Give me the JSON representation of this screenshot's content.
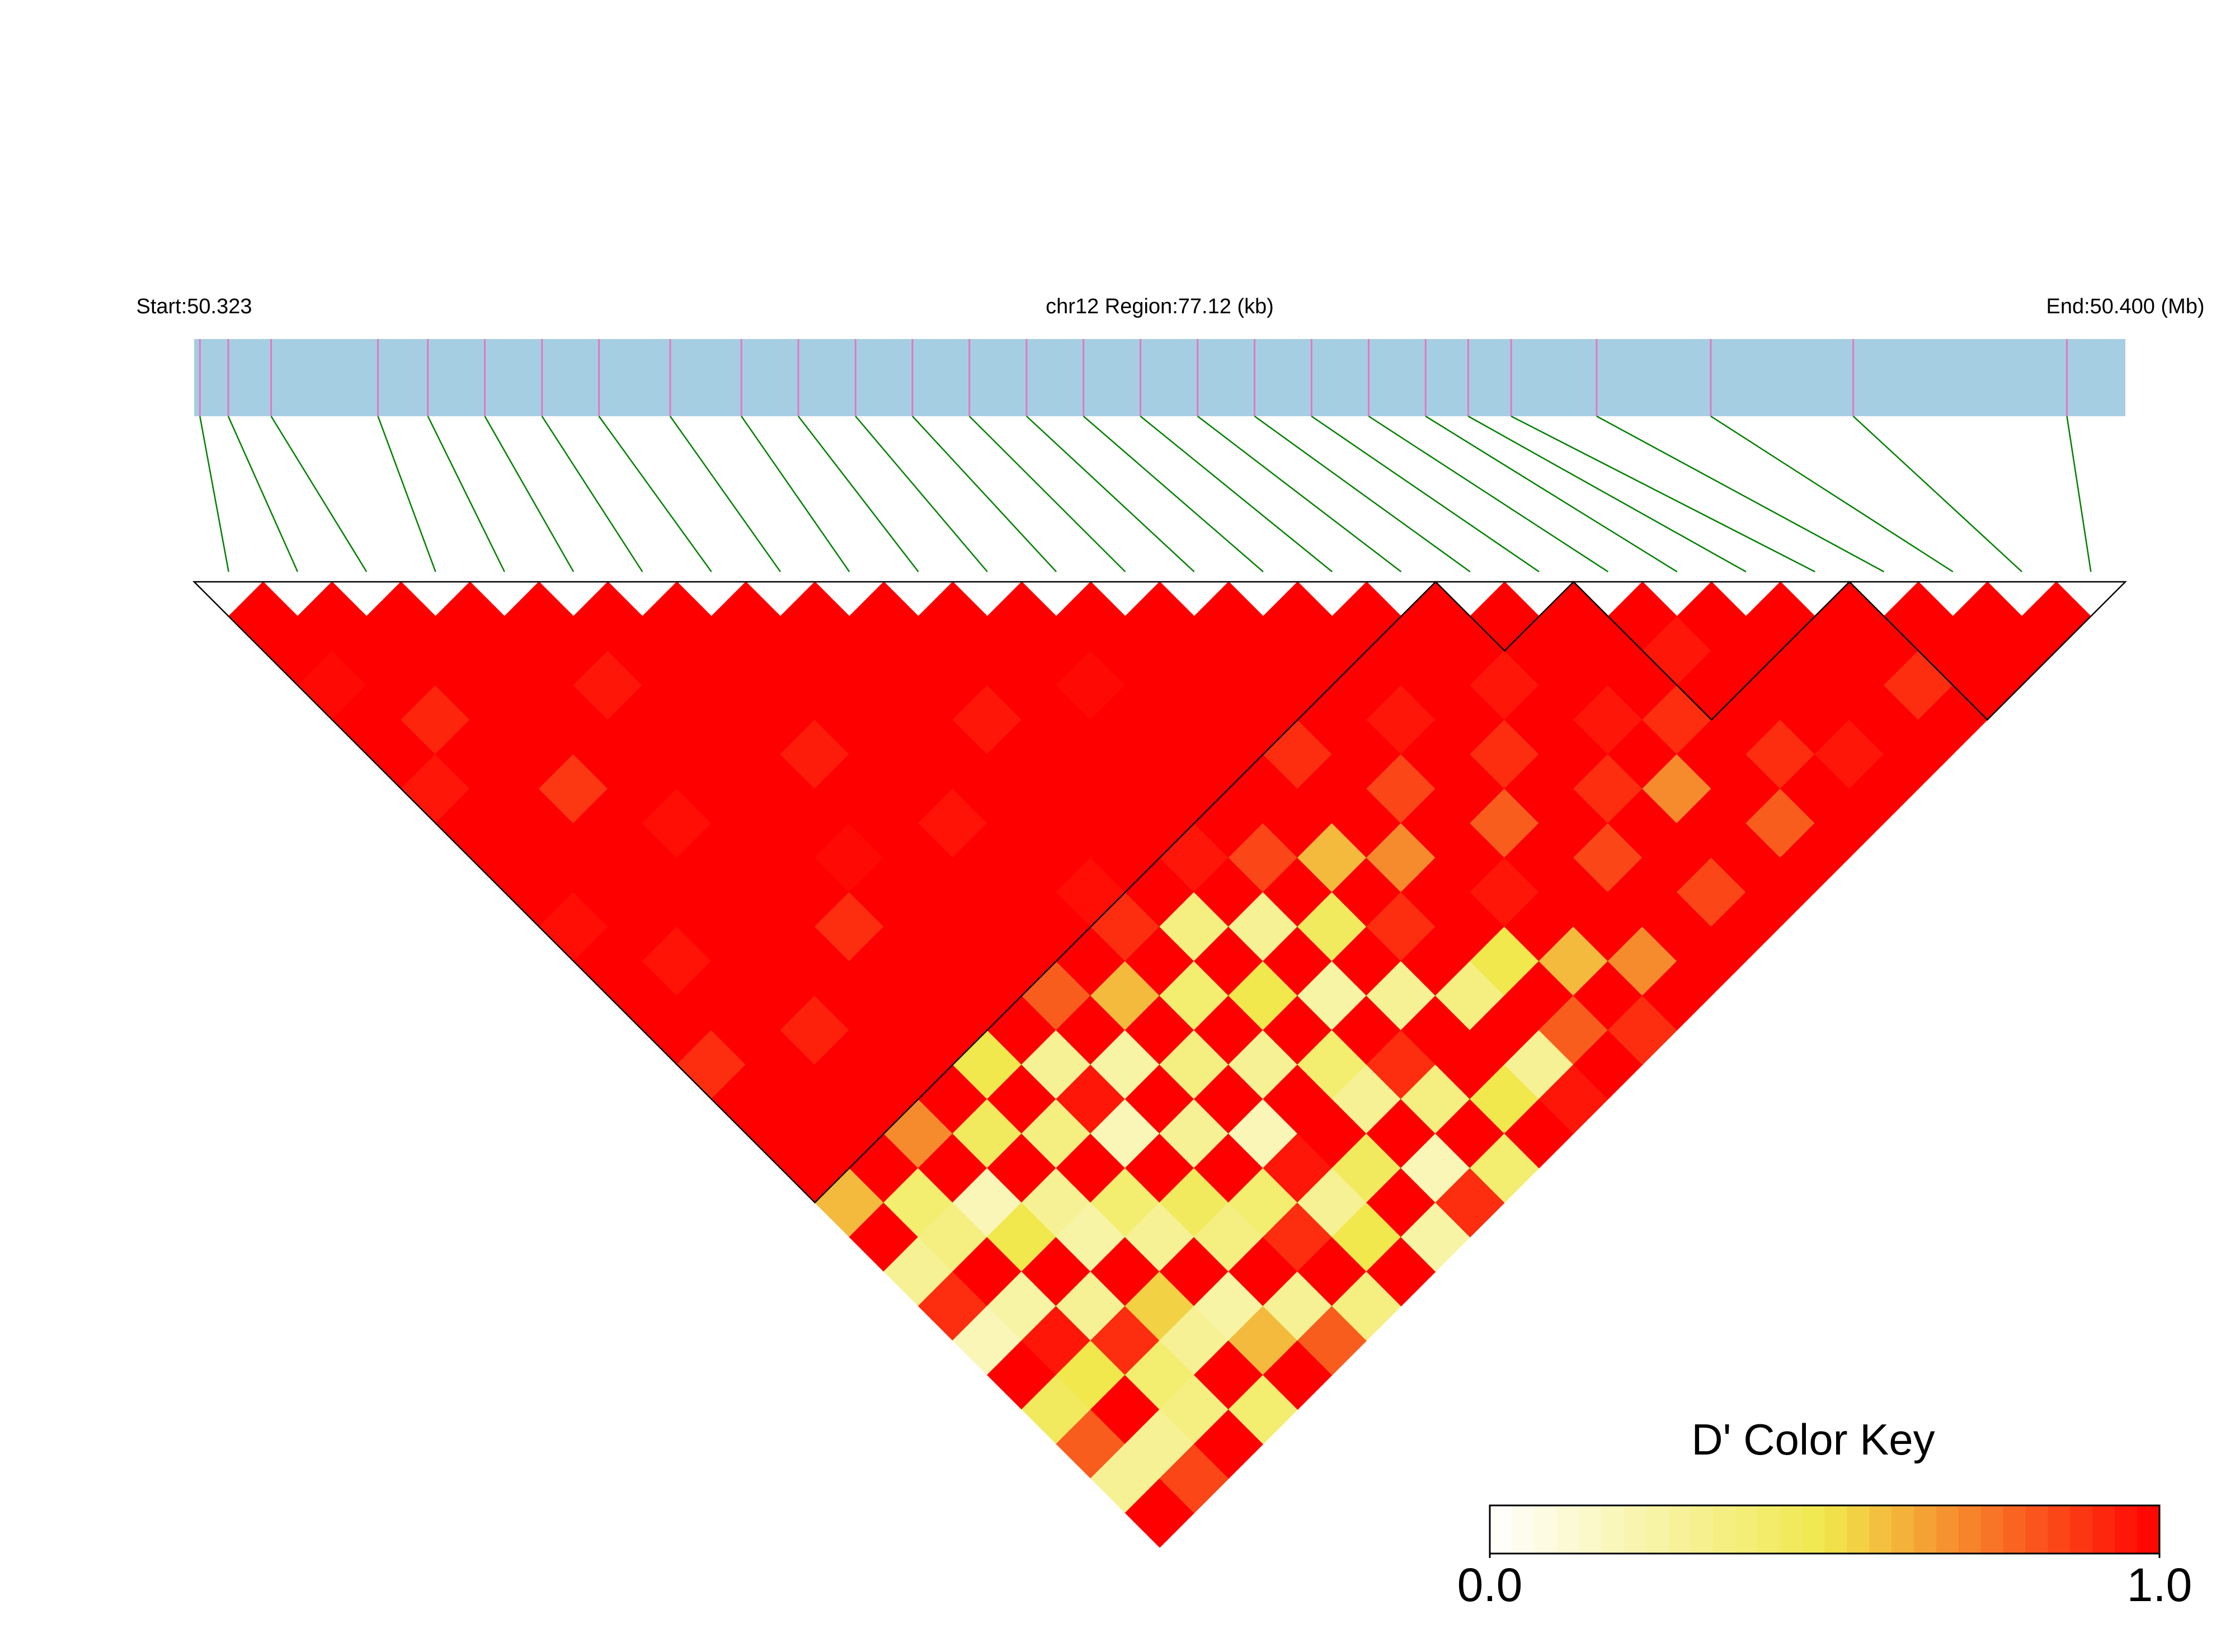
{
  "chart_data": {
    "type": "ld-heatmap",
    "start_label": "Start:50.323",
    "title": "chr12 Region:77.12 (kb)",
    "end_label": "End:50.400 (Mb)",
    "xlim": [
      50.323,
      50.4
    ],
    "positions": [
      50.32323,
      50.32436,
      50.32607,
      50.33033,
      50.33232,
      50.33459,
      50.33687,
      50.33914,
      50.34198,
      50.34482,
      50.34709,
      50.34937,
      50.35164,
      50.35391,
      50.35619,
      50.35846,
      50.36073,
      50.36301,
      50.36528,
      50.36755,
      50.36983,
      50.3721,
      50.3738,
      50.37551,
      50.37892,
      50.38347,
      50.38915,
      50.39767
    ],
    "dprime": [
      [
        1,
        1,
        0.98,
        1,
        1,
        0.95,
        1,
        1,
        1,
        0.97,
        1,
        1,
        1,
        0.9,
        1,
        1,
        1,
        0.6,
        1,
        0.3,
        0.9,
        0.2,
        1,
        0.45,
        0.8,
        0.3,
        1
      ],
      [
        1,
        1,
        1,
        0.92,
        1,
        1,
        1,
        1,
        1,
        1,
        0.96,
        1,
        1,
        1,
        1,
        1,
        1,
        0.4,
        0.35,
        1,
        0.25,
        0.95,
        0.5,
        1,
        0.3,
        0.85
      ],
      [
        1,
        1,
        1,
        1,
        1,
        0.88,
        1,
        1,
        1,
        1,
        1,
        1,
        0.93,
        1,
        1,
        0.7,
        1,
        0.2,
        0.5,
        1,
        0.3,
        0.9,
        0.4,
        0.35,
        1
      ],
      [
        1,
        1,
        1,
        1,
        1,
        1,
        0.97,
        1,
        1,
        1,
        1,
        1,
        1,
        1,
        1,
        0.45,
        1,
        0.3,
        0.25,
        1,
        0.55,
        0.3,
        1,
        0.4
      ],
      [
        1,
        1,
        0.95,
        1,
        1,
        1,
        1,
        1,
        1,
        0.9,
        1,
        1,
        1,
        0.5,
        1,
        0.35,
        1,
        0.4,
        0.3,
        1,
        0.25,
        0.6,
        1
      ],
      [
        1,
        1,
        1,
        1,
        1,
        1,
        1,
        0.98,
        1,
        1,
        1,
        1,
        1,
        0.3,
        0.95,
        0.2,
        1,
        0.45,
        0.35,
        1,
        0.3,
        0.8
      ],
      [
        1,
        1,
        1,
        1,
        0.94,
        1,
        1,
        1,
        1,
        1,
        1,
        0.8,
        1,
        0.25,
        1,
        0.3,
        1,
        0.4,
        0.9,
        1,
        0.35
      ],
      [
        1,
        1,
        1,
        1,
        1,
        1,
        0.96,
        1,
        1,
        1,
        1,
        0.6,
        1,
        0.35,
        1,
        0.2,
        0.95,
        0.3,
        0.5,
        1
      ],
      [
        1,
        1,
        1,
        1,
        1,
        1,
        1,
        1,
        0.97,
        0.9,
        1,
        0.4,
        1,
        0.3,
        1,
        1,
        0.45,
        1,
        0.25
      ],
      [
        1,
        1,
        1,
        0.95,
        1,
        1,
        1,
        1,
        1,
        0.35,
        1,
        0.5,
        1,
        0.4,
        0.3,
        1,
        0.2,
        0.9
      ],
      [
        1,
        1,
        1,
        1,
        1,
        1,
        1,
        0.95,
        1,
        0.3,
        1,
        0.25,
        1,
        0.9,
        0.35,
        1,
        0.4
      ],
      [
        1,
        1,
        0.98,
        1,
        1,
        1,
        1,
        0.85,
        1,
        0.45,
        1,
        0.3,
        1,
        1,
        0.5,
        1
      ],
      [
        1,
        1,
        1,
        1,
        1,
        1,
        1,
        0.6,
        1,
        0.9,
        1,
        0.35,
        1,
        0.3,
        0.95
      ],
      [
        1,
        1,
        1,
        1,
        0.9,
        1,
        1,
        0.7,
        1,
        1,
        0.5,
        1,
        0.8,
        1
      ],
      [
        1,
        1,
        1,
        1,
        1,
        0.85,
        1,
        1,
        0.95,
        1,
        0.6,
        1,
        0.9
      ],
      [
        1,
        1,
        1,
        0.95,
        1,
        1,
        0.8,
        1,
        1,
        1,
        0.7,
        1
      ],
      [
        1,
        1,
        1,
        1,
        0.9,
        1,
        1,
        0.85,
        1,
        1,
        1
      ],
      [
        1,
        1,
        0.95,
        1,
        1,
        0.9,
        1,
        1,
        0.85,
        1
      ],
      [
        1,
        1,
        1,
        0.95,
        1,
        0.7,
        1,
        1,
        1
      ],
      [
        1,
        1,
        1,
        0.9,
        1,
        1,
        0.8,
        1
      ],
      [
        1,
        0.95,
        1,
        1,
        0.9,
        1,
        1
      ],
      [
        1,
        1,
        1,
        1,
        0.95,
        1
      ],
      [
        1,
        1,
        1,
        1,
        1
      ],
      [
        1,
        1,
        0.9,
        1
      ],
      [
        1,
        1,
        1
      ],
      [
        1,
        1
      ],
      [
        1
      ]
    ],
    "blocks": [
      [
        0,
        17
      ],
      [
        18,
        19
      ],
      [
        20,
        23
      ],
      [
        24,
        27
      ]
    ],
    "bar_color": "#a6cee3",
    "snp_line_color": "#e377c2",
    "connector_color": "#008000",
    "colorscale": [
      "#ffffff",
      "#f0e84c",
      "#ff0000"
    ],
    "key_title": "D' Color Key",
    "key_ticks": [
      {
        "value": 0,
        "label": "0.0"
      },
      {
        "value": 1,
        "label": "1.0"
      }
    ]
  }
}
